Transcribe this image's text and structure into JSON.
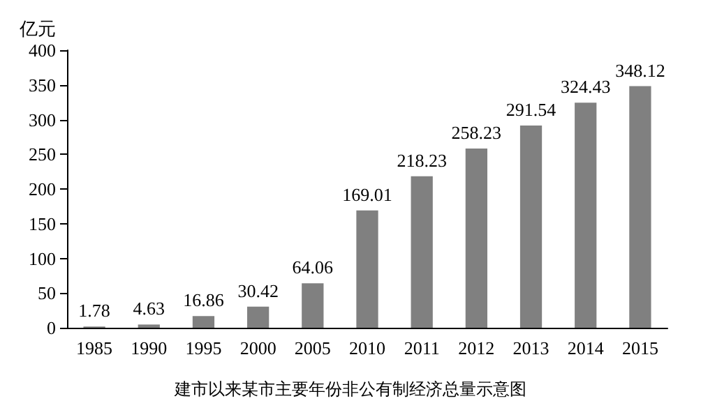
{
  "chart_data": {
    "type": "bar",
    "ylabel": "亿元",
    "categories": [
      "1985",
      "1990",
      "1995",
      "2000",
      "2005",
      "2010",
      "2011",
      "2012",
      "2013",
      "2014",
      "2015"
    ],
    "values": [
      1.78,
      4.63,
      16.86,
      30.42,
      64.06,
      169.01,
      218.23,
      258.23,
      291.54,
      324.43,
      348.12
    ],
    "color": "#808080",
    "ylim": [
      0,
      400
    ],
    "yticks": [
      0,
      50,
      100,
      150,
      200,
      250,
      300,
      350,
      400
    ],
    "grid": false,
    "data_labels": true,
    "annotations": [
      "建市以来某市主要年份非公有制经济总量示意图"
    ]
  }
}
